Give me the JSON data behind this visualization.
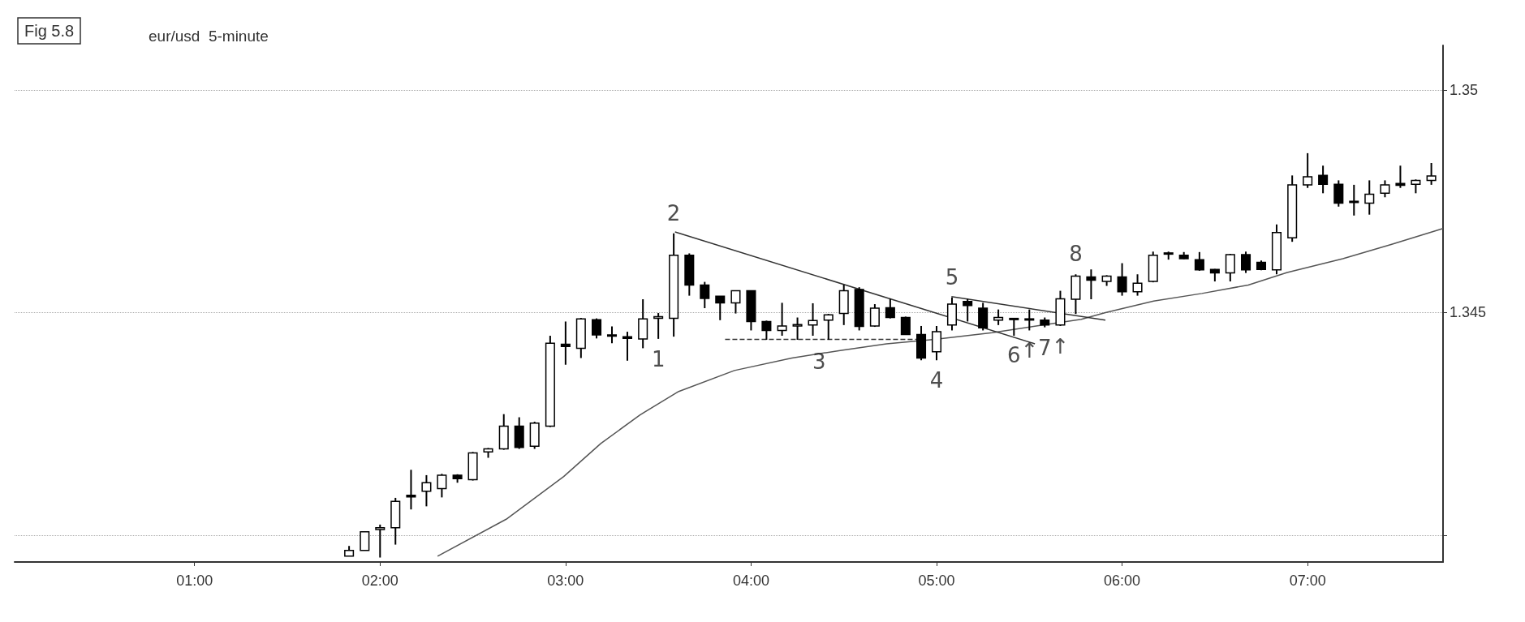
{
  "chart_data": {
    "type": "candlestick",
    "title": "Fig 5.8",
    "subtitle": "eur/usd  5-minute",
    "x": [
      1.833,
      1.917,
      2,
      2.083,
      2.167,
      2.25,
      2.333,
      2.417,
      2.5,
      2.583,
      2.667,
      2.75,
      2.833,
      2.917,
      3,
      3.083,
      3.167,
      3.25,
      3.333,
      3.417,
      3.5,
      3.583,
      3.667,
      3.75,
      3.833,
      3.917,
      4,
      4.083,
      4.167,
      4.25,
      4.333,
      4.417,
      4.5,
      4.583,
      4.667,
      4.75,
      4.833,
      4.917,
      5,
      5.083,
      5.167,
      5.25,
      5.333,
      5.417,
      5.5,
      5.583,
      5.667,
      5.75,
      5.833,
      5.917,
      6,
      6.083,
      6.167,
      6.25,
      6.333,
      6.417,
      6.5,
      6.583,
      6.667,
      6.75,
      6.833,
      6.917,
      7,
      7.083,
      7.167,
      7.25,
      7.333,
      7.417,
      7.5,
      7.583,
      7.667
    ],
    "ohlc": [
      [
        1.33953,
        1.33976,
        1.33953,
        1.33966
      ],
      [
        1.33966,
        1.34008,
        1.33966,
        1.34008
      ],
      [
        1.34013,
        1.34024,
        1.3395,
        1.34017
      ],
      [
        1.34017,
        1.34084,
        1.33979,
        1.34076
      ],
      [
        1.3409,
        1.34147,
        1.34058,
        1.34086
      ],
      [
        1.34099,
        1.34135,
        1.34065,
        1.34118
      ],
      [
        1.34105,
        1.34138,
        1.34085,
        1.34135
      ],
      [
        1.34135,
        1.34137,
        1.34118,
        1.34127
      ],
      [
        1.34125,
        1.34187,
        1.34123,
        1.34185
      ],
      [
        1.34187,
        1.34196,
        1.34174,
        1.34194
      ],
      [
        1.34194,
        1.34272,
        1.34192,
        1.34245
      ],
      [
        1.34245,
        1.34265,
        1.34194,
        1.34197
      ],
      [
        1.342,
        1.34255,
        1.34194,
        1.34252
      ],
      [
        1.34245,
        1.34448,
        1.34243,
        1.34431
      ],
      [
        1.34429,
        1.3448,
        1.34383,
        1.34424
      ],
      [
        1.3442,
        1.34488,
        1.34398,
        1.34486
      ],
      [
        1.34484,
        1.34487,
        1.34442,
        1.3445
      ],
      [
        1.34447,
        1.34469,
        1.34431,
        1.3445
      ],
      [
        1.34446,
        1.34457,
        1.34392,
        1.34442
      ],
      [
        1.34441,
        1.3453,
        1.3442,
        1.34486
      ],
      [
        1.34487,
        1.34499,
        1.34441,
        1.34491
      ],
      [
        1.34487,
        1.34678,
        1.34446,
        1.34629
      ],
      [
        1.34629,
        1.34633,
        1.34538,
        1.34562
      ],
      [
        1.34562,
        1.34569,
        1.3451,
        1.34532
      ],
      [
        1.34537,
        1.34537,
        1.34483,
        1.34522
      ],
      [
        1.34522,
        1.34549,
        1.34498,
        1.34549
      ],
      [
        1.34549,
        1.34549,
        1.3446,
        1.3448
      ],
      [
        1.3448,
        1.34482,
        1.34439,
        1.3446
      ],
      [
        1.3446,
        1.34522,
        1.34448,
        1.3447
      ],
      [
        1.3447,
        1.34489,
        1.34439,
        1.34473
      ],
      [
        1.34472,
        1.34521,
        1.34448,
        1.34482
      ],
      [
        1.34483,
        1.34497,
        1.34439,
        1.34495
      ],
      [
        1.34498,
        1.34563,
        1.34472,
        1.34549
      ],
      [
        1.34552,
        1.34557,
        1.3446,
        1.34469
      ],
      [
        1.3447,
        1.34519,
        1.34468,
        1.3451
      ],
      [
        1.34511,
        1.34531,
        1.34487,
        1.34489
      ],
      [
        1.34489,
        1.34491,
        1.3445,
        1.34451
      ],
      [
        1.34451,
        1.3447,
        1.34393,
        1.34398
      ],
      [
        1.34412,
        1.3447,
        1.34393,
        1.34457
      ],
      [
        1.34472,
        1.34534,
        1.3446,
        1.34519
      ],
      [
        1.34525,
        1.34531,
        1.3448,
        1.34516
      ],
      [
        1.3451,
        1.34522,
        1.3446,
        1.34466
      ],
      [
        1.34483,
        1.34507,
        1.34472,
        1.34489
      ],
      [
        1.34487,
        1.34487,
        1.34448,
        1.34485
      ],
      [
        1.34485,
        1.34507,
        1.3446,
        1.34486
      ],
      [
        1.34483,
        1.34489,
        1.34467,
        1.34472
      ],
      [
        1.34472,
        1.34549,
        1.3447,
        1.34531
      ],
      [
        1.3453,
        1.34586,
        1.34497,
        1.34582
      ],
      [
        1.3458,
        1.34597,
        1.3453,
        1.34573
      ],
      [
        1.3457,
        1.34584,
        1.3456,
        1.34582
      ],
      [
        1.3458,
        1.34611,
        1.34538,
        1.34547
      ],
      [
        1.34547,
        1.34586,
        1.34538,
        1.34566
      ],
      [
        1.3457,
        1.34637,
        1.34568,
        1.34629
      ],
      [
        1.34632,
        1.34637,
        1.34619,
        1.34634
      ],
      [
        1.34629,
        1.34636,
        1.3462,
        1.34621
      ],
      [
        1.34619,
        1.34636,
        1.34594,
        1.34596
      ],
      [
        1.34597,
        1.34598,
        1.3457,
        1.34589
      ],
      [
        1.34589,
        1.34632,
        1.3457,
        1.3463
      ],
      [
        1.3463,
        1.34637,
        1.34589,
        1.34596
      ],
      [
        1.34613,
        1.34617,
        1.34595,
        1.34597
      ],
      [
        1.34596,
        1.34698,
        1.34586,
        1.3468
      ],
      [
        1.34668,
        1.34808,
        1.34659,
        1.34787
      ],
      [
        1.34787,
        1.34858,
        1.3478,
        1.34805
      ],
      [
        1.34808,
        1.3483,
        1.34768,
        1.34788
      ],
      [
        1.34788,
        1.34797,
        1.34738,
        1.34746
      ],
      [
        1.34748,
        1.34787,
        1.34718,
        1.3475
      ],
      [
        1.34746,
        1.34797,
        1.3472,
        1.34766
      ],
      [
        1.34768,
        1.34797,
        1.34759,
        1.34787
      ],
      [
        1.3479,
        1.3483,
        1.3478,
        1.34786
      ],
      [
        1.34788,
        1.34799,
        1.34768,
        1.34797
      ],
      [
        1.34797,
        1.34836,
        1.34787,
        1.34807
      ]
    ],
    "color": "#000000",
    "series": [
      {
        "type": "line",
        "color": "#555555",
        "x": [
          2.31,
          2.68,
          2.99,
          3.19,
          3.4,
          3.61,
          3.91,
          4.22,
          4.48,
          4.73,
          4.99,
          5.3,
          5.78,
          5.91,
          6.17,
          6.43,
          6.68,
          6.89,
          7.19,
          7.45,
          7.73
        ],
        "values": [
          1.33953,
          1.34036,
          1.34132,
          1.34206,
          1.3427,
          1.34323,
          1.3437,
          1.34398,
          1.34415,
          1.3443,
          1.3444,
          1.34455,
          1.34485,
          1.345,
          1.34526,
          1.34543,
          1.34562,
          1.3459,
          1.34621,
          1.34653,
          1.34689
        ]
      },
      {
        "type": "line",
        "color": "#333333",
        "x": [
          3.59,
          5.53
        ],
        "values": [
          1.34681,
          1.3443
        ]
      },
      {
        "type": "line",
        "color": "#333333",
        "x": [
          5.08,
          5.91
        ],
        "values": [
          1.34536,
          1.34483
        ]
      },
      {
        "type": "line",
        "color": "#333333",
        "line_style": "dashed",
        "x": [
          3.86,
          4.89
        ],
        "values": [
          1.3444,
          1.3444
        ]
      }
    ],
    "xlim": [
      0.03,
      7.73
    ],
    "xticks": [
      {
        "value": 1,
        "label": "01:00"
      },
      {
        "value": 2,
        "label": "02:00"
      },
      {
        "value": 3,
        "label": "03:00"
      },
      {
        "value": 4,
        "label": "04:00"
      },
      {
        "value": 5,
        "label": "05:00"
      },
      {
        "value": 6,
        "label": "06:00"
      },
      {
        "value": 7,
        "label": "07:00"
      }
    ],
    "ylim": [
      1.3394,
      1.351
    ],
    "yticks": [
      {
        "value": 1.34,
        "label": null
      },
      1.345,
      1.35
    ],
    "grid": "y",
    "annotations": [
      {
        "text": "1",
        "x": 3.5,
        "y": 1.34441
      },
      {
        "text": "2",
        "x": 3.583,
        "y": 1.34678
      },
      {
        "text": "3",
        "x": 4.48,
        "y": 1.34415
      },
      {
        "text": "4",
        "x": 5,
        "y": 1.34393
      },
      {
        "text": "5",
        "x": 5.083,
        "y": 1.34534
      },
      {
        "text": "6",
        "x": 5.53,
        "y": 1.3443
      },
      {
        "text": "↑",
        "x": 5.5,
        "y": 1.3446
      },
      {
        "text": "7",
        "x": 5.583,
        "y": 1.34467
      },
      {
        "text": "↑",
        "x": 5.667,
        "y": 1.3447
      },
      {
        "text": "8",
        "x": 5.75,
        "y": 1.34586
      }
    ]
  }
}
